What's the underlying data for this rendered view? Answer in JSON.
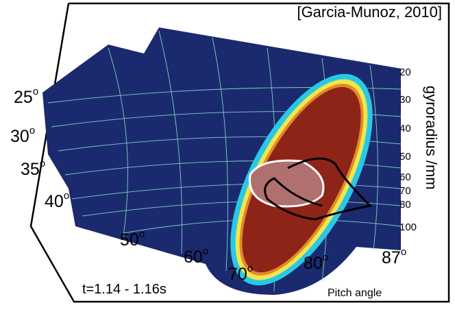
{
  "citation": "[Garcia-Munoz, 2010]",
  "time_label": "t=1.14 - 1.16s",
  "pitch_axis_title": "Pitch angle",
  "gyroradius_axis_title": "gyroradius  /mm",
  "degree_mark": "o",
  "pitch_labels": [
    "25",
    "30",
    "35",
    "40",
    "50",
    "60",
    "70",
    "80",
    "87"
  ],
  "gyroradius_labels": [
    "20",
    "30",
    "40",
    "50",
    "60",
    "70",
    "80",
    "100"
  ]
}
